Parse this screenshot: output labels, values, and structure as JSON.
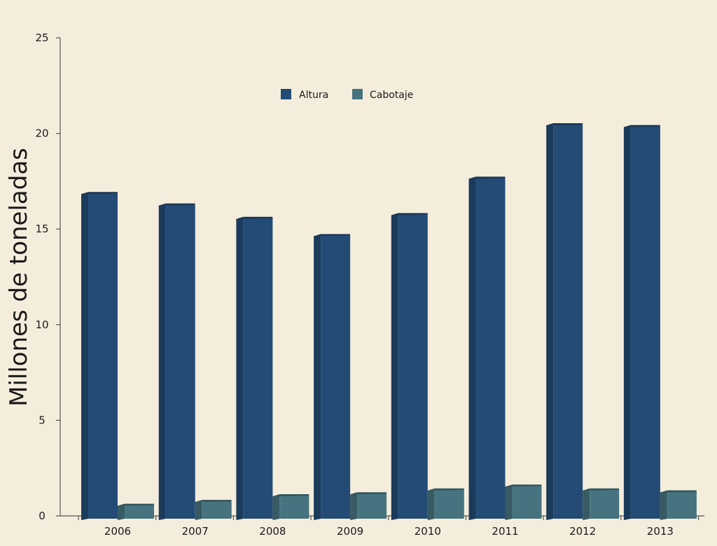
{
  "chart_data": {
    "type": "bar",
    "title": "",
    "xlabel": "",
    "ylabel": "Millones de toneladas",
    "ylim": [
      0,
      25
    ],
    "yticks": [
      0,
      5,
      10,
      15,
      20,
      25
    ],
    "grid": false,
    "legend_position": "top-center",
    "categories": [
      "2006",
      "2007",
      "2008",
      "2009",
      "2010",
      "2011",
      "2012",
      "2013"
    ],
    "series": [
      {
        "name": "Altura",
        "color": "#234b75",
        "values": [
          16.9,
          16.3,
          15.6,
          14.7,
          15.8,
          17.7,
          20.5,
          20.4
        ]
      },
      {
        "name": "Cabotaje",
        "color": "#46737f",
        "values": [
          0.6,
          0.8,
          1.1,
          1.2,
          1.4,
          1.6,
          1.4,
          1.3
        ]
      }
    ],
    "background": "#f5eddc"
  }
}
